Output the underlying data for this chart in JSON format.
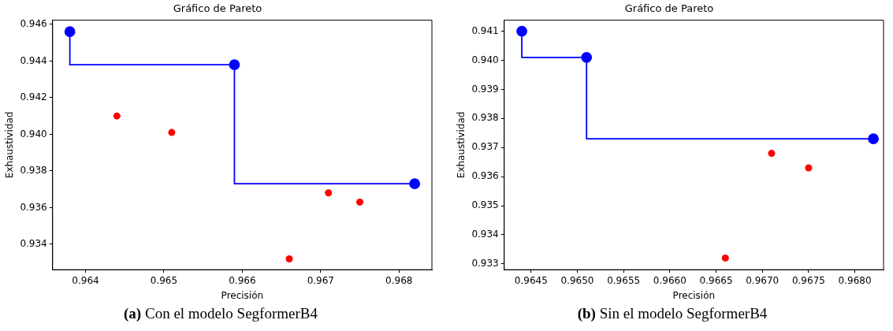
{
  "chart_data": [
    {
      "type": "scatter",
      "title": "Gráfico de Pareto",
      "xlabel": "Precisión",
      "ylabel": "Exhaustividad",
      "annotations": [
        "(a) Con el modelo SegformerB4"
      ],
      "xlim": [
        0.96358,
        0.96842
      ],
      "ylim": [
        0.93261,
        0.94623
      ],
      "xticks": [
        {
          "value": 0.964,
          "label": "0.964"
        },
        {
          "value": 0.965,
          "label": "0.965"
        },
        {
          "value": 0.966,
          "label": "0.966"
        },
        {
          "value": 0.967,
          "label": "0.967"
        },
        {
          "value": 0.968,
          "label": "0.968"
        }
      ],
      "yticks": [
        {
          "value": 0.934,
          "label": "0.934"
        },
        {
          "value": 0.936,
          "label": "0.936"
        },
        {
          "value": 0.938,
          "label": "0.938"
        },
        {
          "value": 0.94,
          "label": "0.940"
        },
        {
          "value": 0.942,
          "label": "0.942"
        },
        {
          "value": 0.944,
          "label": "0.944"
        },
        {
          "value": 0.946,
          "label": "0.946"
        }
      ],
      "grid": false,
      "marker": "circle",
      "series": [
        {
          "color": "#ff0000",
          "x": [
            0.9644,
            0.9651,
            0.9666,
            0.9671,
            0.9675
          ],
          "values": [
            0.941,
            0.9401,
            0.9332,
            0.9368,
            0.9363
          ]
        },
        {
          "type": "step",
          "color": "#0000ff",
          "x": [
            0.9638,
            0.9659,
            0.9682
          ],
          "values": [
            0.9456,
            0.9438,
            0.9373
          ]
        }
      ]
    },
    {
      "type": "scatter",
      "title": "Gráfico de Pareto",
      "xlabel": "Precisión",
      "ylabel": "Exhaustividad",
      "annotations": [
        "(b) Sin el modelo SegformerB4"
      ],
      "xlim": [
        0.96421,
        0.96831
      ],
      "ylim": [
        0.9328,
        0.94138
      ],
      "xticks": [
        {
          "value": 0.9645,
          "label": "0.9645"
        },
        {
          "value": 0.965,
          "label": "0.9650"
        },
        {
          "value": 0.9655,
          "label": "0.9655"
        },
        {
          "value": 0.966,
          "label": "0.9660"
        },
        {
          "value": 0.9665,
          "label": "0.9665"
        },
        {
          "value": 0.967,
          "label": "0.9670"
        },
        {
          "value": 0.9675,
          "label": "0.9675"
        },
        {
          "value": 0.968,
          "label": "0.9680"
        }
      ],
      "yticks": [
        {
          "value": 0.933,
          "label": "0.933"
        },
        {
          "value": 0.934,
          "label": "0.934"
        },
        {
          "value": 0.935,
          "label": "0.935"
        },
        {
          "value": 0.936,
          "label": "0.936"
        },
        {
          "value": 0.937,
          "label": "0.937"
        },
        {
          "value": 0.938,
          "label": "0.938"
        },
        {
          "value": 0.939,
          "label": "0.939"
        },
        {
          "value": 0.94,
          "label": "0.940"
        },
        {
          "value": 0.941,
          "label": "0.941"
        }
      ],
      "grid": false,
      "marker": "circle",
      "series": [
        {
          "color": "#ff0000",
          "x": [
            0.9666,
            0.9671,
            0.9675
          ],
          "values": [
            0.9332,
            0.9368,
            0.9363
          ]
        },
        {
          "type": "step",
          "color": "#0000ff",
          "x": [
            0.9644,
            0.9651,
            0.9682
          ],
          "values": [
            0.941,
            0.9401,
            0.9373
          ]
        }
      ]
    }
  ]
}
